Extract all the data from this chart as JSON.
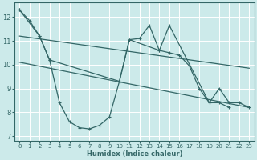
{
  "xlabel": "Humidex (Indice chaleur)",
  "bg_color": "#cceaea",
  "grid_color": "#ffffff",
  "line_color": "#336666",
  "xlim": [
    -0.5,
    23.5
  ],
  "ylim": [
    6.8,
    12.6
  ],
  "yticks": [
    7,
    8,
    9,
    10,
    11,
    12
  ],
  "xticks": [
    0,
    1,
    2,
    3,
    4,
    5,
    6,
    7,
    8,
    9,
    10,
    11,
    12,
    13,
    14,
    15,
    16,
    17,
    18,
    19,
    20,
    21,
    22,
    23
  ],
  "series_x": [
    0,
    1,
    2,
    3,
    4,
    5,
    6,
    7,
    8,
    9,
    10,
    11,
    12,
    13,
    14,
    15,
    16,
    17,
    18,
    19,
    20,
    21,
    22,
    23
  ],
  "series_y": [
    12.3,
    11.85,
    11.2,
    10.2,
    8.4,
    7.6,
    7.35,
    7.3,
    7.45,
    7.8,
    9.3,
    11.05,
    11.1,
    11.65,
    10.6,
    10.5,
    10.4,
    9.95,
    9.0,
    8.4,
    8.4,
    8.2,
    null,
    null
  ],
  "line2_x": [
    0,
    2,
    3,
    10,
    11,
    14,
    15,
    19,
    20,
    21,
    22,
    23
  ],
  "line2_y": [
    12.3,
    11.2,
    10.2,
    9.3,
    11.05,
    10.6,
    11.65,
    8.4,
    9.0,
    8.4,
    8.4,
    8.2
  ],
  "trend1_x": [
    0,
    23
  ],
  "trend1_y": [
    11.2,
    9.85
  ],
  "trend2_x": [
    0,
    23
  ],
  "trend2_y": [
    10.1,
    8.2
  ]
}
